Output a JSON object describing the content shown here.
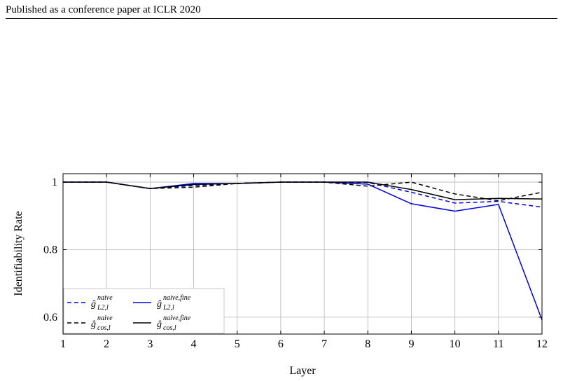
{
  "header": {
    "running_title": "Published as a conference paper at ICLR 2020"
  },
  "chart_data": {
    "type": "line",
    "title": "",
    "xlabel": "Layer",
    "ylabel": "Identifiability Rate",
    "x": [
      1,
      2,
      3,
      4,
      5,
      6,
      7,
      8,
      9,
      10,
      11,
      12
    ],
    "xticks": [
      "1",
      "2",
      "3",
      "4",
      "5",
      "6",
      "7",
      "8",
      "9",
      "10",
      "11",
      "12"
    ],
    "yticks": [
      {
        "value": 0.6,
        "label": "0.6"
      },
      {
        "value": 0.8,
        "label": "0.8"
      },
      {
        "value": 1.0,
        "label": "1"
      }
    ],
    "xlim": [
      1,
      12
    ],
    "ylim": [
      0.55,
      1.025
    ],
    "grid": true,
    "legend_position": "bottom-left",
    "series": [
      {
        "name": "ĝ_{L2,l}^{naive}",
        "legend_base": "ĝ",
        "legend_sub": "L2,l",
        "legend_sup": "naive",
        "color": "#0000dd",
        "dash": "dashed",
        "values": [
          1.0,
          1.0,
          0.981,
          0.99,
          0.996,
          1.0,
          1.0,
          0.999,
          0.97,
          0.938,
          0.943,
          0.926
        ]
      },
      {
        "name": "ĝ_{L2,l}^{naive,fine}",
        "legend_base": "ĝ",
        "legend_sub": "L2,l",
        "legend_sup": "naive,fine",
        "color": "#0000dd",
        "dash": "solid",
        "values": [
          1.0,
          1.0,
          0.981,
          0.996,
          0.996,
          1.0,
          1.0,
          0.994,
          0.936,
          0.914,
          0.934,
          0.592
        ]
      },
      {
        "name": "ĝ_{cos,l}^{naive}",
        "legend_base": "ĝ",
        "legend_sub": "cos,l",
        "legend_sup": "naive",
        "color": "#000000",
        "dash": "dashed",
        "values": [
          1.0,
          1.0,
          0.981,
          0.985,
          0.996,
          1.0,
          1.0,
          0.988,
          1.0,
          0.965,
          0.945,
          0.97
        ]
      },
      {
        "name": "ĝ_{cos,l}^{naive,fine}",
        "legend_base": "ĝ",
        "legend_sub": "cos,l",
        "legend_sup": "naive,fine",
        "color": "#000000",
        "dash": "solid",
        "values": [
          1.0,
          1.0,
          0.981,
          0.993,
          0.996,
          1.0,
          1.0,
          1.0,
          0.978,
          0.948,
          0.952,
          0.95
        ]
      }
    ]
  }
}
